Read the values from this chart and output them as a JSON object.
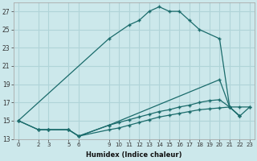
{
  "xlabel": "Humidex (Indice chaleur)",
  "background_color": "#cce8eb",
  "grid_color": "#b0d4d8",
  "line_color": "#1a6b6b",
  "xlim": [
    -0.5,
    23.5
  ],
  "ylim": [
    13,
    28
  ],
  "xticks": [
    0,
    2,
    3,
    5,
    6,
    9,
    10,
    11,
    12,
    13,
    14,
    15,
    16,
    17,
    18,
    19,
    20,
    21,
    22,
    23
  ],
  "yticks": [
    13,
    15,
    17,
    19,
    21,
    23,
    25,
    27
  ],
  "lines": [
    {
      "x": [
        0,
        9,
        11,
        12,
        13,
        14,
        15,
        16,
        17,
        18,
        20,
        21,
        22
      ],
      "y": [
        15,
        24,
        25.5,
        26,
        27,
        27.5,
        27,
        27,
        26,
        25,
        24,
        16.5,
        15.5
      ]
    },
    {
      "x": [
        0,
        2,
        3,
        5,
        6,
        9,
        20,
        21,
        22
      ],
      "y": [
        15,
        14,
        14,
        14,
        13.3,
        14.5,
        19.5,
        16.5,
        15.5
      ]
    },
    {
      "x": [
        0,
        2,
        3,
        5,
        6,
        9,
        10,
        11,
        12,
        13,
        14,
        15,
        16,
        17,
        18,
        19,
        20,
        21,
        22,
        23
      ],
      "y": [
        15,
        14,
        14,
        14,
        13.3,
        14.0,
        14.2,
        14.5,
        14.8,
        15.1,
        15.4,
        15.6,
        15.8,
        16.0,
        16.2,
        16.3,
        16.4,
        16.5,
        16.5,
        16.5
      ]
    },
    {
      "x": [
        2,
        3,
        5,
        6,
        9,
        10,
        11,
        12,
        13,
        14,
        15,
        16,
        17,
        18,
        19,
        20,
        21,
        22,
        23
      ],
      "y": [
        14,
        14,
        14,
        13.3,
        14.5,
        14.8,
        15.1,
        15.4,
        15.7,
        16.0,
        16.2,
        16.5,
        16.7,
        17.0,
        17.2,
        17.3,
        16.5,
        15.5,
        16.5
      ]
    }
  ]
}
